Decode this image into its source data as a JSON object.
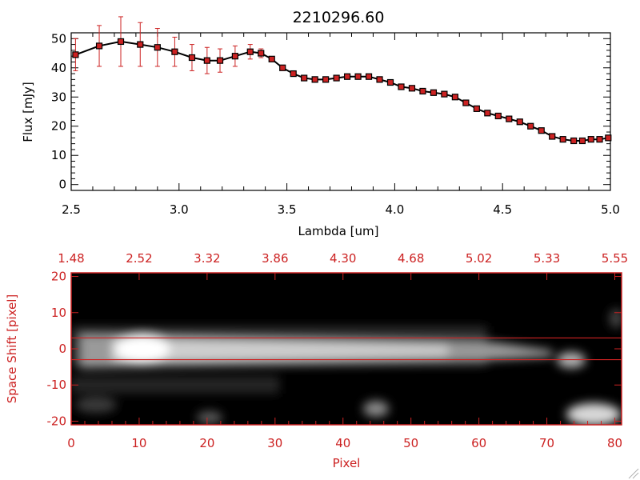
{
  "colors": {
    "accent_red": "#cc2222",
    "line": "#000000",
    "marker": "#cc2222",
    "background": "#ffffff"
  },
  "chart_data": [
    {
      "type": "line",
      "title": "2210296.60",
      "xlabel": "Lambda [um]",
      "ylabel": "Flux [mJy]",
      "xlim": [
        2.5,
        5.0
      ],
      "ylim": [
        -2,
        52
      ],
      "x_ticks": [
        "2.5",
        "3.0",
        "3.5",
        "4.0",
        "4.5",
        "5.0"
      ],
      "y_ticks": [
        "0",
        "10",
        "20",
        "30",
        "40",
        "50"
      ],
      "series": [
        {
          "x": [
            2.52,
            2.63,
            2.73,
            2.82,
            2.9,
            2.98,
            3.06,
            3.13,
            3.19,
            3.26,
            3.33,
            3.38,
            3.43,
            3.48,
            3.53,
            3.58,
            3.63,
            3.68,
            3.73,
            3.78,
            3.83,
            3.88,
            3.93,
            3.98,
            4.03,
            4.08,
            4.13,
            4.18,
            4.23,
            4.28,
            4.33,
            4.38,
            4.43,
            4.48,
            4.53,
            4.58,
            4.63,
            4.68,
            4.73,
            4.78,
            4.83,
            4.87,
            4.91,
            4.95,
            4.99
          ],
          "y": [
            44.5,
            47.5,
            49,
            48,
            47,
            45.5,
            43.5,
            42.5,
            42.5,
            44,
            45.5,
            45,
            43,
            40,
            38,
            36.5,
            36,
            36,
            36.5,
            37,
            37,
            37,
            36,
            35,
            33.5,
            33,
            32,
            31.5,
            31,
            30,
            28,
            26,
            24.5,
            23.5,
            22.5,
            21.5,
            20,
            18.5,
            16.5,
            15.5,
            15,
            15,
            15.5,
            15.5,
            16
          ],
          "yerr": [
            5.5,
            7,
            8.5,
            7.5,
            6.5,
            5,
            4.5,
            4.5,
            4,
            3.5,
            2.5,
            1.5,
            0,
            0,
            0,
            0,
            0,
            0,
            0,
            0,
            0,
            0,
            0,
            0,
            0,
            0,
            0,
            0,
            0,
            0,
            0,
            0,
            0,
            0,
            0,
            0,
            0,
            0,
            0,
            0,
            0,
            0,
            0,
            0,
            0
          ]
        }
      ]
    },
    {
      "type": "heatmap",
      "xlabel": "Pixel",
      "ylabel": "Space Shift [pixel]",
      "xlim": [
        0,
        81
      ],
      "ylim": [
        -21,
        21
      ],
      "x_ticks": [
        "0",
        "10",
        "20",
        "30",
        "40",
        "50",
        "60",
        "70",
        "80"
      ],
      "y_ticks": [
        "-20",
        "-10",
        "0",
        "10",
        "20"
      ],
      "top_ticks": [
        "1.48",
        "2.52",
        "3.32",
        "3.86",
        "4.30",
        "4.68",
        "5.02",
        "5.33",
        "5.55"
      ],
      "extraction_window": [
        -3,
        3
      ],
      "colormap": "grayscale"
    }
  ]
}
